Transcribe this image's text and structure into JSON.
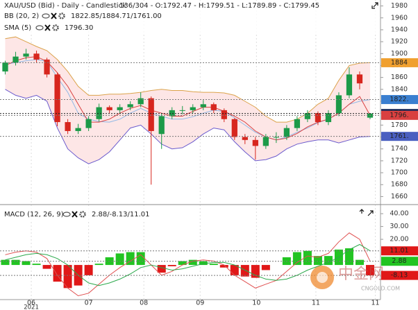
{
  "chart_data": [
    {
      "type": "candlestick",
      "title": "XAU/USD (Bid) - Daily - Candlestick",
      "subtitle": "136/304 - O:1792.47 - H:1799.51 - L:1789.89 - C:1799.45",
      "xlim": [
        -0.5,
        36
      ],
      "xticks": [
        {
          "value": 2.5,
          "label": "06"
        },
        {
          "value": 8,
          "label": "07"
        },
        {
          "value": 13.3,
          "label": "08"
        },
        {
          "value": 18.7,
          "label": "09"
        },
        {
          "value": 24.1,
          "label": "10"
        },
        {
          "value": 29.8,
          "label": "11"
        },
        {
          "value": 35.5,
          "label": "11"
        }
      ],
      "year_label": "2021",
      "ylim": [
        1650,
        1990
      ],
      "yticks": [
        1660,
        1680,
        1700,
        1720,
        1740,
        1760,
        1780,
        1800,
        1820,
        1840,
        1860,
        1880,
        1900,
        1920,
        1940,
        1960,
        1980
      ],
      "up_color": "#1c9a48",
      "down_color": "#d7261e",
      "open": [
        1870,
        1885,
        1895,
        1900,
        1890,
        1865,
        1785,
        1770,
        1775,
        1790,
        1810,
        1805,
        1810,
        1815,
        1825,
        1765,
        1795,
        1805,
        1805,
        1810,
        1815,
        1805,
        1790,
        1760,
        1755,
        1745,
        1760,
        1760,
        1775,
        1790,
        1800,
        1785,
        1800,
        1830,
        1865,
        1792.47
      ],
      "high": [
        1888,
        1903,
        1908,
        1905,
        1893,
        1868,
        1790,
        1782,
        1795,
        1816,
        1813,
        1815,
        1820,
        1835,
        1828,
        1800,
        1810,
        1812,
        1815,
        1822,
        1818,
        1808,
        1792,
        1765,
        1760,
        1765,
        1768,
        1780,
        1795,
        1805,
        1803,
        1805,
        1835,
        1877,
        1870,
        1799.51
      ],
      "low": [
        1865,
        1880,
        1890,
        1885,
        1860,
        1778,
        1765,
        1765,
        1770,
        1786,
        1800,
        1800,
        1805,
        1810,
        1680,
        1740,
        1790,
        1798,
        1800,
        1805,
        1800,
        1785,
        1755,
        1748,
        1722,
        1740,
        1750,
        1755,
        1770,
        1785,
        1780,
        1780,
        1795,
        1825,
        1840,
        1789.89
      ],
      "close": [
        1885,
        1895,
        1900,
        1890,
        1865,
        1785,
        1770,
        1775,
        1790,
        1810,
        1805,
        1810,
        1815,
        1825,
        1770,
        1795,
        1805,
        1805,
        1810,
        1815,
        1805,
        1790,
        1760,
        1755,
        1745,
        1760,
        1760,
        1775,
        1790,
        1800,
        1785,
        1800,
        1830,
        1865,
        1850,
        1799.45
      ],
      "band_fill": "#fde6e6",
      "indicators": [
        {
          "name": "BB (20, 2)",
          "readout": "1822.85/1884.71/1761.00",
          "lines": [
            {
              "color": "#8fb8e6",
              "values": [
                1882,
                1885,
                1888,
                1890,
                1887,
                1860,
                1835,
                1800,
                1790,
                1786,
                1785,
                1790,
                1800,
                1808,
                1800,
                1795,
                1790,
                1790,
                1794,
                1800,
                1805,
                1803,
                1792,
                1780,
                1768,
                1760,
                1755,
                1760,
                1768,
                1775,
                1784,
                1790,
                1800,
                1815,
                1820,
                1822.85
              ]
            },
            {
              "color": "#dba24a",
              "values": [
                1925,
                1928,
                1920,
                1912,
                1905,
                1890,
                1870,
                1845,
                1830,
                1830,
                1832,
                1832,
                1833,
                1835,
                1838,
                1840,
                1838,
                1838,
                1836,
                1835,
                1835,
                1834,
                1830,
                1820,
                1810,
                1795,
                1785,
                1785,
                1790,
                1800,
                1815,
                1825,
                1855,
                1880,
                1884,
                1884.71
              ]
            },
            {
              "color": "#6a5acd",
              "values": [
                1840,
                1830,
                1825,
                1830,
                1820,
                1775,
                1740,
                1725,
                1715,
                1722,
                1735,
                1755,
                1775,
                1780,
                1765,
                1748,
                1740,
                1742,
                1752,
                1765,
                1775,
                1772,
                1752,
                1735,
                1720,
                1722,
                1728,
                1740,
                1748,
                1752,
                1755,
                1755,
                1750,
                1755,
                1760,
                1761.0
              ]
            }
          ]
        },
        {
          "name": "SMA (5)",
          "readout": "1796.30",
          "lines": [
            {
              "color": "#d94040",
              "values": [
                1880,
                1888,
                1893,
                1895,
                1887,
                1868,
                1845,
                1815,
                1785,
                1785,
                1790,
                1800,
                1808,
                1813,
                1805,
                1800,
                1795,
                1795,
                1803,
                1810,
                1810,
                1803,
                1795,
                1785,
                1770,
                1760,
                1755,
                1758,
                1766,
                1777,
                1785,
                1790,
                1800,
                1815,
                1828,
                1796.3
              ]
            }
          ]
        }
      ],
      "price_tags": [
        {
          "value": 1884.71,
          "label": "1884",
          "color": "#f0a030"
        },
        {
          "value": 1822.85,
          "label": "1822.",
          "color": "#3a7fd0"
        },
        {
          "value": 1799.45,
          "label": "1799.",
          "color": "#1a2a5a"
        },
        {
          "value": 1796.3,
          "label": "1796.",
          "color": "#d94040"
        },
        {
          "value": 1761.0,
          "label": "1761.",
          "color": "#4a5fc0"
        }
      ]
    },
    {
      "type": "macd",
      "title": "MACD (12, 26, 9)",
      "readout": "2.88/-8.13/11.01",
      "ylim": [
        -27,
        46
      ],
      "yticks": [
        {
          "value": 40,
          "label": "40.00"
        },
        {
          "value": 30,
          "label": "30.00"
        },
        {
          "value": 20,
          "label": "20.00"
        }
      ],
      "series": [
        {
          "name": "MACD",
          "color": "#e05050",
          "values": [
            8,
            10,
            11,
            10,
            5,
            -8,
            -18,
            -24,
            -22,
            -15,
            -8,
            -2,
            3,
            8,
            0,
            -8,
            -5,
            0,
            3,
            4,
            3,
            0,
            -8,
            -13,
            -18,
            -15,
            -12,
            -5,
            2,
            7,
            6,
            9,
            18,
            25,
            20,
            2.88
          ]
        },
        {
          "name": "Signal",
          "color": "#2aa84a",
          "values": [
            4,
            6,
            8,
            9,
            8,
            5,
            0,
            -8,
            -14,
            -16,
            -14,
            -11,
            -7,
            -2,
            0,
            -2,
            -4,
            -3,
            -1,
            1,
            2,
            2,
            0,
            -4,
            -8,
            -11,
            -12,
            -11,
            -8,
            -4,
            -1,
            2,
            6,
            12,
            16,
            11.01
          ]
        }
      ],
      "histogram": {
        "up_color": "#22c422",
        "down_color": "#e01818",
        "values": [
          4,
          4,
          3,
          1,
          -3,
          -13,
          -18,
          -16,
          -8,
          1,
          6,
          9,
          10,
          10,
          0,
          -6,
          -1,
          3,
          4,
          3,
          1,
          -2,
          -8,
          -9,
          -10,
          -4,
          0,
          6,
          10,
          11,
          7,
          7,
          12,
          13,
          4,
          -8.13
        ]
      },
      "price_tags": [
        {
          "value": 11.01,
          "label": "11.01",
          "color": "#e01818"
        },
        {
          "value": 2.88,
          "label": "2.88",
          "color": "#22c422"
        },
        {
          "value": -8.13,
          "label": "-8.13",
          "color": "#e01818"
        }
      ]
    }
  ],
  "watermark": {
    "name": "中金网",
    "site": "CNGOLD.COM"
  }
}
